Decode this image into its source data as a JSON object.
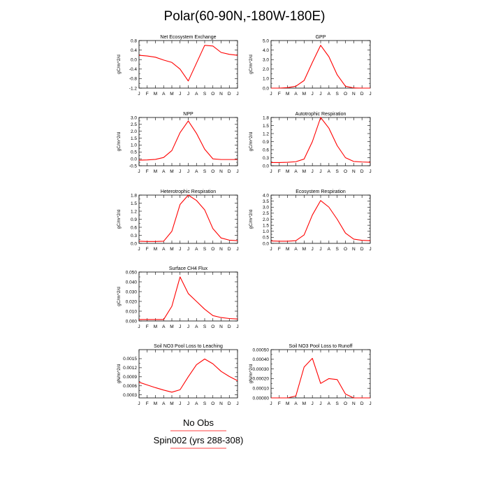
{
  "page_title": "Polar(60-90N,-180W-180E)",
  "months": [
    "J",
    "F",
    "M",
    "A",
    "M",
    "J",
    "J",
    "A",
    "S",
    "O",
    "N",
    "D",
    "J"
  ],
  "legend": {
    "obs_label": "No Obs",
    "run_label": "Spin002 (yrs 288-308)",
    "obs_color": "#ff0000",
    "run_color": "#ff0000"
  },
  "line_color": "#ff0000",
  "chart_data": [
    {
      "type": "line",
      "title": "Net Ecosystem Exchange",
      "ylabel": "gC/m^2/d",
      "ylim": [
        -1.2,
        0.8
      ],
      "yticks": [
        -1.2,
        -0.8,
        -0.4,
        0.0,
        0.4,
        0.8
      ],
      "ytick_labels": [
        "-1.2",
        "-0.8",
        "-0.4",
        "0.0",
        "0.4",
        "0.8"
      ],
      "values": [
        0.18,
        0.15,
        0.1,
        -0.02,
        -0.12,
        -0.4,
        -0.9,
        -0.15,
        0.6,
        0.57,
        0.3,
        0.22,
        0.18
      ]
    },
    {
      "type": "line",
      "title": "GPP",
      "ylabel": "gC/m^2/d",
      "ylim": [
        0.0,
        5.0
      ],
      "yticks": [
        0.0,
        1.0,
        2.0,
        3.0,
        4.0,
        5.0
      ],
      "ytick_labels": [
        "0.0",
        "1.0",
        "2.0",
        "3.0",
        "4.0",
        "5.0"
      ],
      "values": [
        0.0,
        0.0,
        0.05,
        0.2,
        0.8,
        2.7,
        4.5,
        3.3,
        1.4,
        0.2,
        0.02,
        0.0,
        0.0
      ]
    },
    {
      "type": "line",
      "title": "NPP",
      "ylabel": "gC/m^2/d",
      "ylim": [
        -0.5,
        3.0
      ],
      "yticks": [
        -0.5,
        0.0,
        0.5,
        1.0,
        1.5,
        2.0,
        2.5,
        3.0
      ],
      "ytick_labels": [
        "-0.5",
        "0.0",
        "0.5",
        "1.0",
        "1.5",
        "2.0",
        "2.5",
        "3.0"
      ],
      "values": [
        -0.1,
        -0.08,
        -0.04,
        0.1,
        0.6,
        1.9,
        2.75,
        1.85,
        0.7,
        0.0,
        -0.05,
        -0.05,
        -0.05
      ]
    },
    {
      "type": "line",
      "title": "Autotrophic Respiration",
      "ylabel": "gC/m^2/d",
      "ylim": [
        0.0,
        1.8
      ],
      "yticks": [
        0.0,
        0.3,
        0.6,
        0.9,
        1.2,
        1.5,
        1.8
      ],
      "ytick_labels": [
        "0.0",
        "0.3",
        "0.6",
        "0.9",
        "1.2",
        "1.5",
        "1.8"
      ],
      "values": [
        0.12,
        0.12,
        0.13,
        0.15,
        0.25,
        0.9,
        1.8,
        1.4,
        0.75,
        0.3,
        0.16,
        0.14,
        0.13
      ]
    },
    {
      "type": "line",
      "title": "Heterotrophic Respiration",
      "ylabel": "gC/m^2/d",
      "ylim": [
        0.0,
        1.8
      ],
      "yticks": [
        0.0,
        0.3,
        0.6,
        0.9,
        1.2,
        1.5,
        1.8
      ],
      "ytick_labels": [
        "0.0",
        "0.3",
        "0.6",
        "0.9",
        "1.2",
        "1.5",
        "1.8"
      ],
      "values": [
        0.08,
        0.07,
        0.07,
        0.08,
        0.45,
        1.45,
        1.8,
        1.6,
        1.25,
        0.55,
        0.2,
        0.12,
        0.1
      ]
    },
    {
      "type": "line",
      "title": "Ecosystem Respiration",
      "ylabel": "gC/m^2/d",
      "ylim": [
        0.0,
        4.0
      ],
      "yticks": [
        0.0,
        0.5,
        1.0,
        1.5,
        2.0,
        2.5,
        3.0,
        3.5,
        4.0
      ],
      "ytick_labels": [
        "0.0",
        "0.5",
        "1.0",
        "1.5",
        "2.0",
        "2.5",
        "3.0",
        "3.5",
        "4.0"
      ],
      "values": [
        0.2,
        0.18,
        0.18,
        0.22,
        0.7,
        2.35,
        3.55,
        3.0,
        2.0,
        0.85,
        0.35,
        0.25,
        0.22
      ]
    },
    {
      "type": "line",
      "title": "Surface CH4 Flux",
      "ylabel": "gC/m^2/d",
      "ylim": [
        0.0,
        0.05
      ],
      "yticks": [
        0.0,
        0.01,
        0.02,
        0.03,
        0.04,
        0.05
      ],
      "ytick_labels": [
        "0.000",
        "0.010",
        "0.020",
        "0.030",
        "0.040",
        "0.050"
      ],
      "values": [
        0.0015,
        0.0015,
        0.0015,
        0.0015,
        0.015,
        0.045,
        0.028,
        0.02,
        0.012,
        0.0055,
        0.0035,
        0.0025,
        0.002
      ]
    },
    {
      "type": "line",
      "title": "Soil NO3 Pool Loss to Leaching",
      "ylabel": "gN/m^2/d",
      "ylim": [
        0.0002,
        0.0018
      ],
      "yticks": [
        0.0003,
        0.0006,
        0.0009,
        0.0012,
        0.0015
      ],
      "ytick_labels": [
        "0.0003",
        "0.0006",
        "0.0009",
        "0.0012",
        "0.0015"
      ],
      "values": [
        0.00072,
        0.00063,
        0.00054,
        0.00046,
        0.00039,
        0.00047,
        0.0009,
        0.0013,
        0.00149,
        0.00133,
        0.00108,
        0.00091,
        0.00077
      ]
    },
    {
      "type": "line",
      "title": "Soil NO3 Pool Loss to Runoff",
      "ylabel": "gN/m^2/d",
      "ylim": [
        0.0,
        0.0005
      ],
      "yticks": [
        0.0,
        0.0001,
        0.0002,
        0.0003,
        0.0004,
        0.0005
      ],
      "ytick_labels": [
        "0.00000",
        "0.00010",
        "0.00020",
        "0.00030",
        "0.00040",
        "0.00050"
      ],
      "values": [
        0.0,
        0.0,
        0.0,
        2e-05,
        0.00032,
        0.00041,
        0.00015,
        0.0002,
        0.00019,
        4e-05,
        0.0,
        0.0,
        0.0
      ]
    }
  ]
}
